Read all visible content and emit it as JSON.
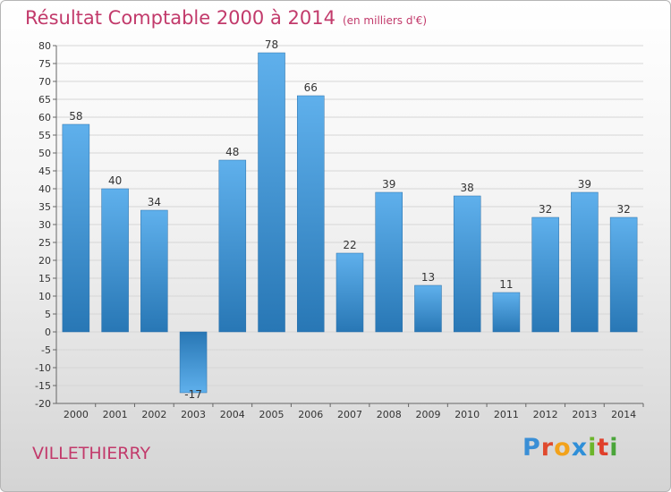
{
  "title": "Résultat Comptable 2000 à 2014",
  "subtitle": "(en milliers d'€)",
  "town": "VILLETHIERRY",
  "logo": {
    "letters": [
      "P",
      "r",
      "o",
      "x",
      "i",
      "t",
      "i"
    ],
    "colors": [
      "#3a8fd6",
      "#e04a2e",
      "#f2a21b",
      "#2f8fd8",
      "#6cb52b",
      "#e0402b",
      "#4aa53a"
    ]
  },
  "colors": {
    "bar_light": "#5fb0ec",
    "bar_dark": "#2877b5",
    "title": "#c23a6b"
  },
  "chart_data": {
    "type": "bar",
    "title": "Résultat Comptable 2000 à 2014",
    "xlabel": "",
    "ylabel": "",
    "ylim": [
      -20,
      80
    ],
    "ytick_step": 5,
    "grid": true,
    "categories": [
      "2000",
      "2001",
      "2002",
      "2003",
      "2004",
      "2005",
      "2006",
      "2007",
      "2008",
      "2009",
      "2010",
      "2011",
      "2012",
      "2013",
      "2014"
    ],
    "values": [
      58,
      40,
      34,
      -17,
      48,
      78,
      66,
      22,
      39,
      13,
      38,
      11,
      32,
      39,
      32
    ]
  }
}
